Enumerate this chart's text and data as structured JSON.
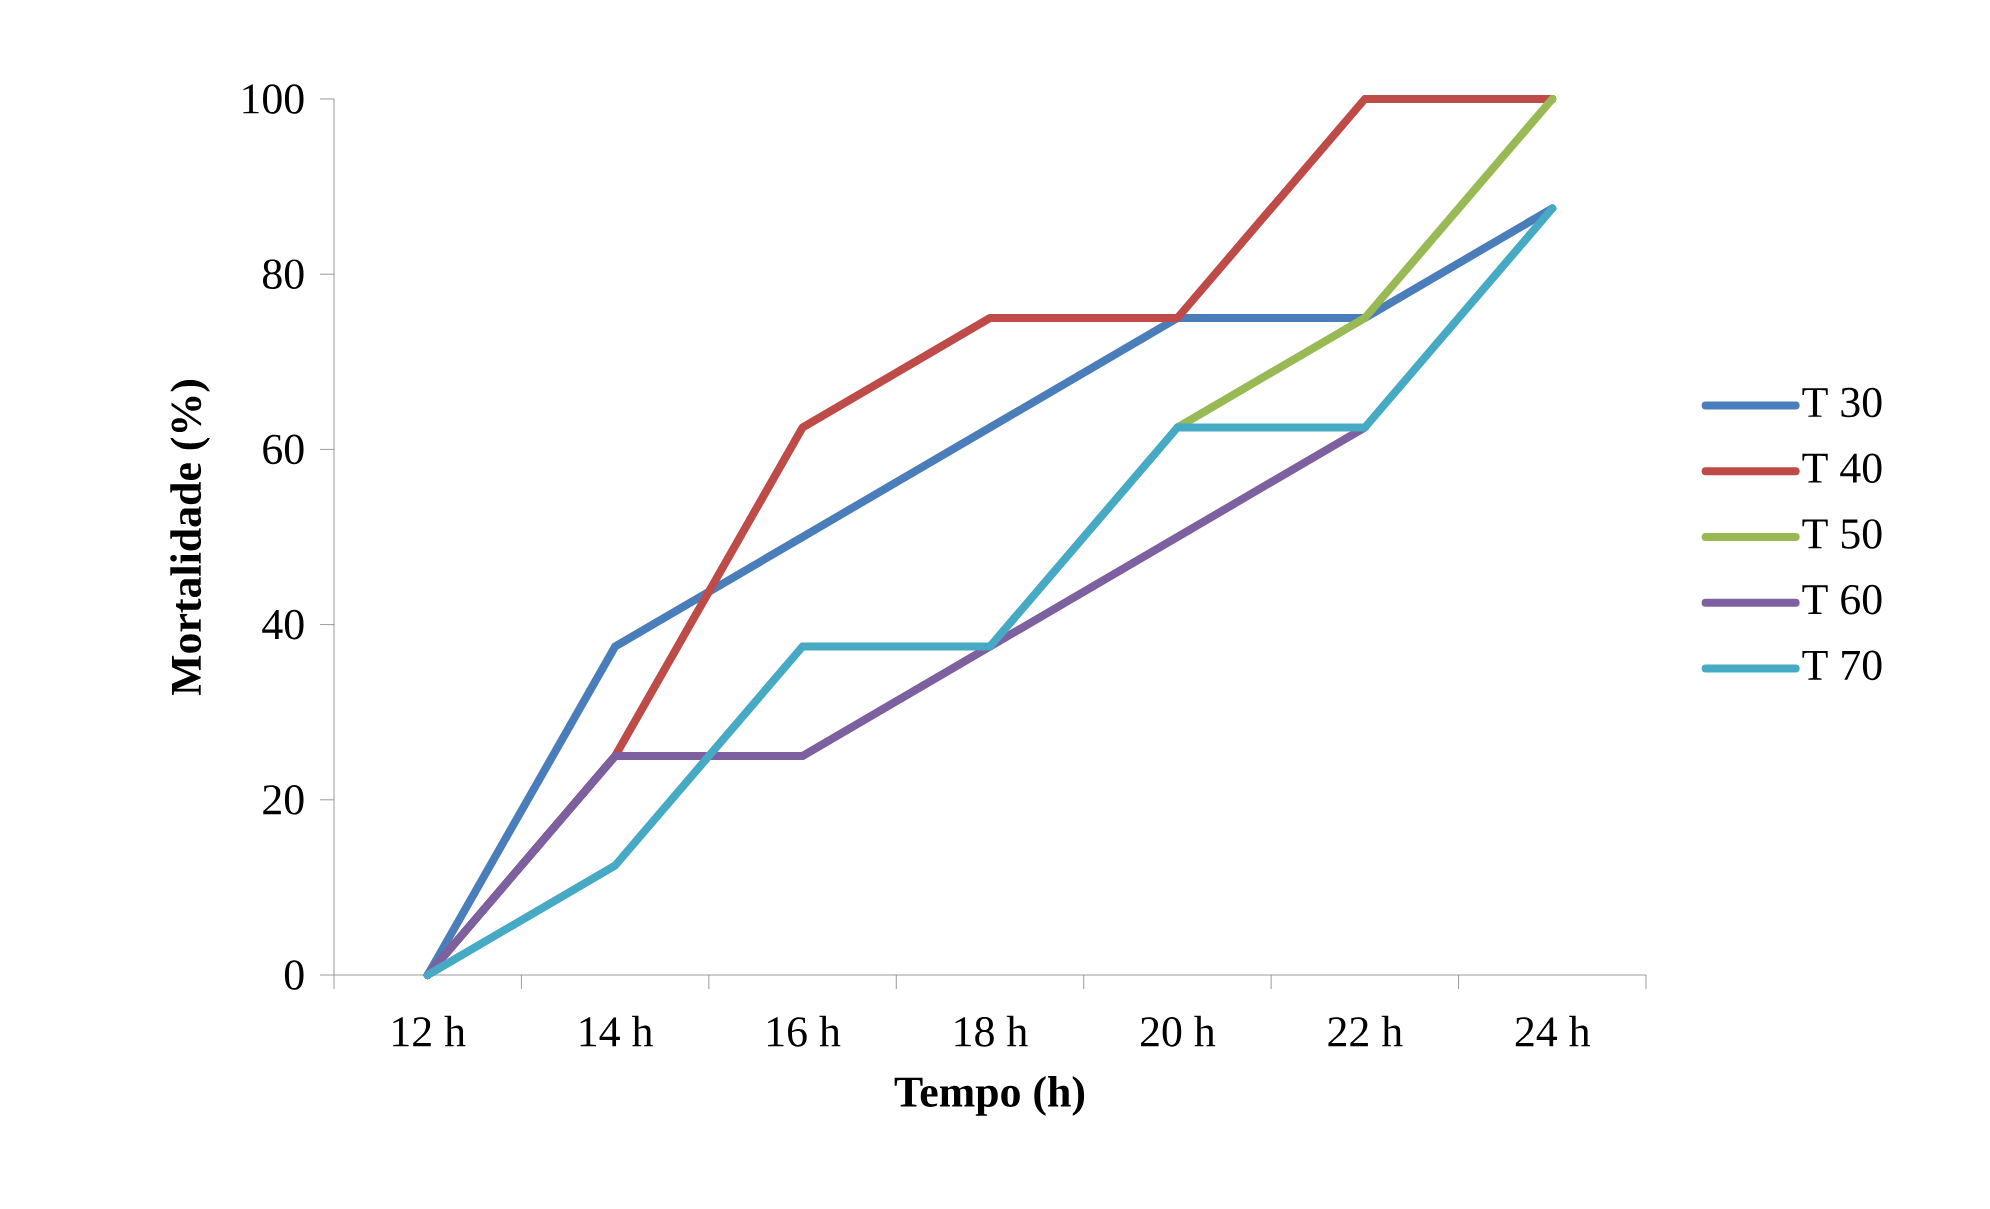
{
  "chart_data": {
    "type": "line",
    "xlabel": "Tempo (h)",
    "ylabel": "Mortalidade (%)",
    "categories": [
      "12 h",
      "14 h",
      "16 h",
      "18 h",
      "20 h",
      "22 h",
      "24 h"
    ],
    "ylim": [
      0,
      100
    ],
    "yticks": [
      0,
      20,
      40,
      60,
      80,
      100
    ],
    "grid": false,
    "legend": "right",
    "marker": "none",
    "line_style": "solid",
    "series": [
      {
        "name": "T 30",
        "color": "#4a7ebb",
        "values": [
          0,
          37.5,
          50,
          62.5,
          75,
          75,
          87.5
        ]
      },
      {
        "name": "T 40",
        "color": "#be4b48",
        "values": [
          0,
          25,
          62.5,
          75,
          75,
          100,
          100
        ]
      },
      {
        "name": "T 50",
        "color": "#98b954",
        "values": [
          null,
          null,
          null,
          null,
          62.5,
          75,
          100
        ]
      },
      {
        "name": "T 60",
        "color": "#7d60a0",
        "values": [
          0,
          25,
          25,
          37.5,
          50,
          62.5,
          null
        ]
      },
      {
        "name": "T 70",
        "color": "#46aac5",
        "values": [
          0,
          12.5,
          37.5,
          37.5,
          62.5,
          62.5,
          87.5
        ]
      }
    ]
  }
}
